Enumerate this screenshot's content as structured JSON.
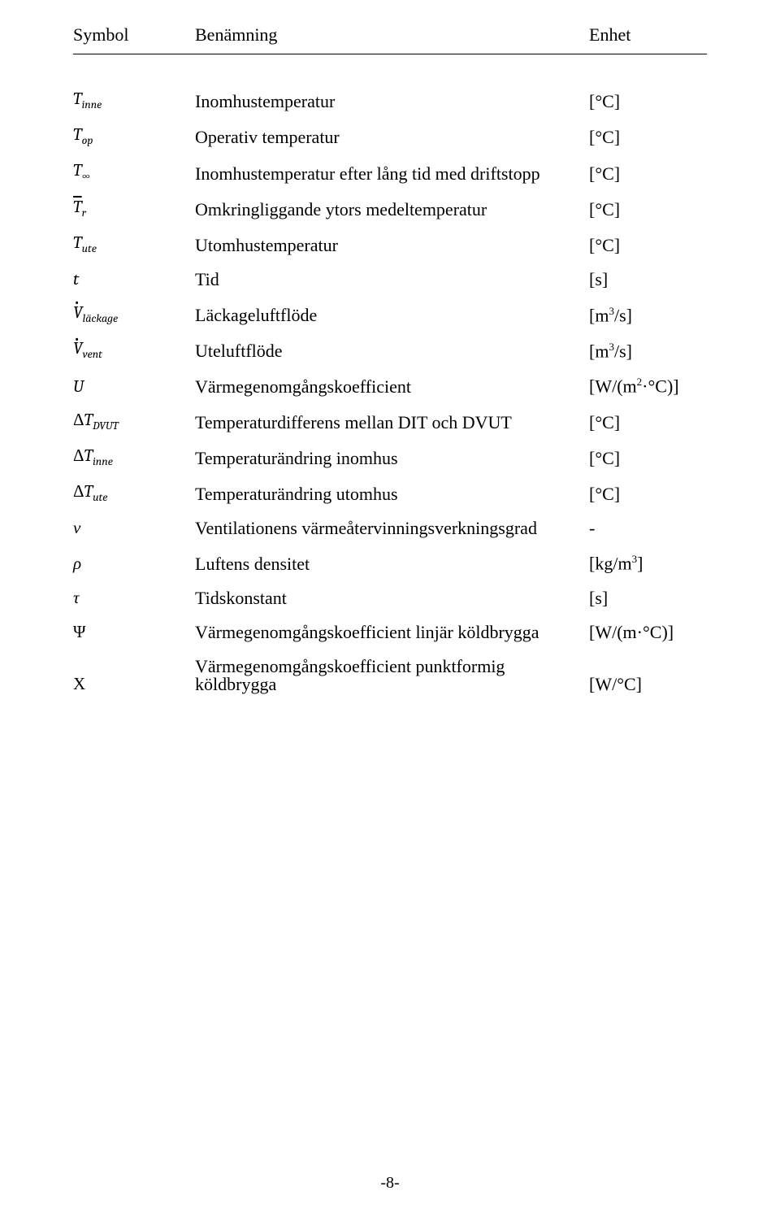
{
  "header": {
    "symbol": "Symbol",
    "desc": "Benämning",
    "unit": "Enhet"
  },
  "rows": [
    {
      "sym_main": "T",
      "sym_sub": "inne",
      "bar": false,
      "dot": false,
      "upright": false,
      "desc": "Inomhustemperatur",
      "unit": "[°C]"
    },
    {
      "sym_main": "T",
      "sym_sub": "op",
      "bar": false,
      "dot": false,
      "upright": false,
      "desc": "Operativ temperatur",
      "unit": "[°C]"
    },
    {
      "sym_main": "T",
      "sym_sub": "∞",
      "bar": false,
      "dot": false,
      "upright": false,
      "sub_upright": true,
      "desc": "Inomhustemperatur efter lång tid med driftstopp",
      "unit": "[°C]"
    },
    {
      "sym_main": "T",
      "sym_sub": "r",
      "bar": true,
      "dot": false,
      "upright": false,
      "desc": "Omkringliggande ytors medeltemperatur",
      "unit": "[°C]"
    },
    {
      "sym_main": "T",
      "sym_sub": "ute",
      "bar": false,
      "dot": false,
      "upright": false,
      "desc": "Utomhustemperatur",
      "unit": "[°C]"
    },
    {
      "sym_main": "t",
      "sym_sub": "",
      "bar": false,
      "dot": false,
      "upright": false,
      "desc": "Tid",
      "unit": "[s]"
    },
    {
      "sym_main": "V",
      "sym_sub": "läckage",
      "bar": false,
      "dot": true,
      "upright": false,
      "desc": "Läckageluftflöde",
      "unit_html": "[m<span class=\"sup\">3</span>/s]"
    },
    {
      "sym_main": "V",
      "sym_sub": "vent",
      "bar": false,
      "dot": true,
      "upright": false,
      "desc": "Uteluftflöde",
      "unit_html": "[m<span class=\"sup\">3</span>/s]"
    },
    {
      "sym_main": "U",
      "sym_sub": "",
      "bar": false,
      "dot": false,
      "upright": false,
      "desc": "Värmegenomgångskoefficient",
      "unit_html": "[W/(m<span class=\"sup\">2</span>·°C)]"
    },
    {
      "sym_main": "ΔT",
      "sym_sub": "DVUT",
      "bar": false,
      "dot": false,
      "upright_prefix": true,
      "desc": "Temperaturdifferens mellan DIT och DVUT",
      "unit": "[°C]"
    },
    {
      "sym_main": "ΔT",
      "sym_sub": "inne",
      "bar": false,
      "dot": false,
      "upright_prefix": true,
      "desc": "Temperaturändring inomhus",
      "unit": "[°C]"
    },
    {
      "sym_main": "ΔT",
      "sym_sub": "ute",
      "bar": false,
      "dot": false,
      "upright_prefix": true,
      "desc": "Temperaturändring utomhus",
      "unit": "[°C]"
    },
    {
      "sym_main": "ν",
      "sym_sub": "",
      "bar": false,
      "dot": false,
      "upright": false,
      "desc": "Ventilationens värmeåtervinningsverkningsgrad",
      "unit": "-"
    },
    {
      "sym_main": "ρ",
      "sym_sub": "",
      "bar": false,
      "dot": false,
      "upright": false,
      "desc": "Luftens densitet",
      "unit_html": "[kg/m<span class=\"sup\">3</span>]"
    },
    {
      "sym_main": "τ",
      "sym_sub": "",
      "bar": false,
      "dot": false,
      "upright": false,
      "desc": "Tidskonstant",
      "unit": "[s]"
    },
    {
      "sym_main": "Ψ",
      "sym_sub": "",
      "bar": false,
      "dot": false,
      "upright": true,
      "desc": "Värmegenomgångskoefficient linjär köldbrygga",
      "unit": "[W/(m·°C)]"
    },
    {
      "sym_main": "Χ",
      "sym_sub": "",
      "bar": false,
      "dot": false,
      "upright": true,
      "desc": "Värmegenomgångskoefficient punktformig köldbrygga",
      "unit": "[W/°C]"
    }
  ],
  "footer": "-8-"
}
